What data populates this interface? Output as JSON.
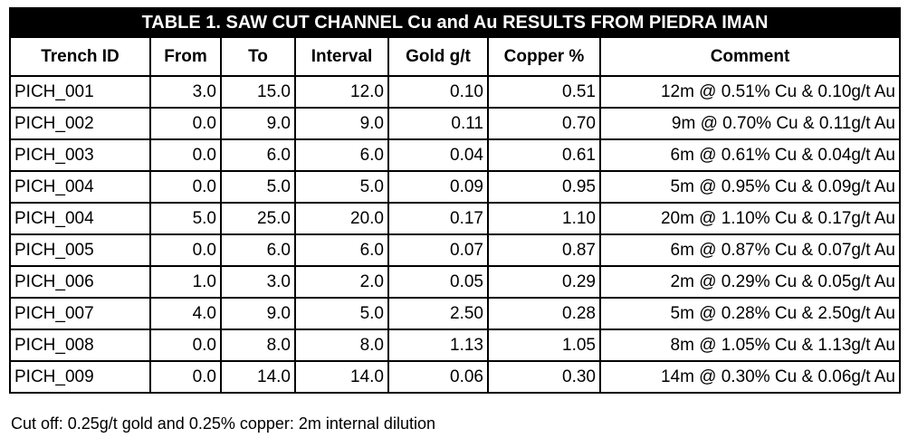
{
  "table": {
    "title": "TABLE 1.  SAW CUT CHANNEL Cu and Au RESULTS FROM PIEDRA IMAN",
    "headers": [
      "Trench ID",
      "From",
      "To",
      "Interval",
      "Gold g/t",
      "Copper %",
      "Comment"
    ],
    "rows": [
      [
        "PICH_001",
        "3.0",
        "15.0",
        "12.0",
        "0.10",
        "0.51",
        "12m @ 0.51% Cu & 0.10g/t Au"
      ],
      [
        "PICH_002",
        "0.0",
        "9.0",
        "9.0",
        "0.11",
        "0.70",
        "9m @ 0.70% Cu & 0.11g/t Au"
      ],
      [
        "PICH_003",
        "0.0",
        "6.0",
        "6.0",
        "0.04",
        "0.61",
        "6m @ 0.61% Cu & 0.04g/t Au"
      ],
      [
        "PICH_004",
        "0.0",
        "5.0",
        "5.0",
        "0.09",
        "0.95",
        "5m @ 0.95% Cu & 0.09g/t Au"
      ],
      [
        "PICH_004",
        "5.0",
        "25.0",
        "20.0",
        "0.17",
        "1.10",
        "20m @ 1.10% Cu & 0.17g/t Au"
      ],
      [
        "PICH_005",
        "0.0",
        "6.0",
        "6.0",
        "0.07",
        "0.87",
        "6m @ 0.87% Cu & 0.07g/t Au"
      ],
      [
        "PICH_006",
        "1.0",
        "3.0",
        "2.0",
        "0.05",
        "0.29",
        "2m @ 0.29% Cu & 0.05g/t Au"
      ],
      [
        "PICH_007",
        "4.0",
        "9.0",
        "5.0",
        "2.50",
        "0.28",
        "5m @ 0.28% Cu & 2.50g/t Au"
      ],
      [
        "PICH_008",
        "0.0",
        "8.0",
        "8.0",
        "1.13",
        "1.05",
        "8m @ 1.05% Cu & 1.13g/t Au"
      ],
      [
        "PICH_009",
        "0.0",
        "14.0",
        "14.0",
        "0.06",
        "0.30",
        "14m @ 0.30% Cu & 0.06g/t Au"
      ]
    ],
    "footnote": "Cut off: 0.25g/t gold and 0.25% copper: 2m internal dilution"
  }
}
